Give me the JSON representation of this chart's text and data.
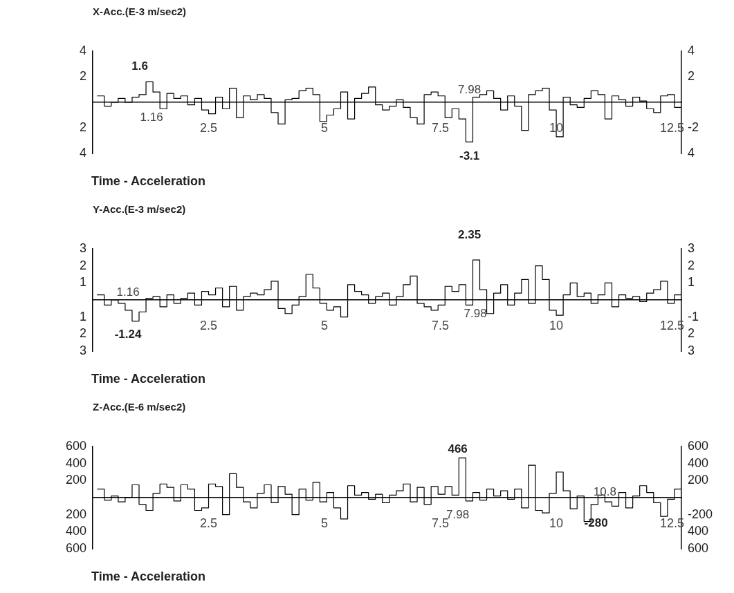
{
  "chart_data": [
    {
      "type": "step",
      "title": "X-Acc.(E-3 m/sec2)",
      "xlabel": "Time - Acceleration",
      "color": "#000000",
      "marker": "none",
      "line_style": "solid",
      "grid": false,
      "legend": false,
      "x": [
        0.1,
        0.25,
        0.4,
        0.55,
        0.7,
        0.85,
        1.0,
        1.15,
        1.3,
        1.45,
        1.6,
        1.75,
        1.9,
        2.05,
        2.2,
        2.35,
        2.5,
        2.65,
        2.8,
        2.95,
        3.1,
        3.25,
        3.4,
        3.55,
        3.7,
        3.85,
        4.0,
        4.15,
        4.3,
        4.45,
        4.6,
        4.75,
        4.9,
        5.05,
        5.2,
        5.35,
        5.5,
        5.65,
        5.8,
        5.95,
        6.1,
        6.25,
        6.4,
        6.55,
        6.7,
        6.85,
        7.0,
        7.15,
        7.3,
        7.45,
        7.6,
        7.75,
        7.9,
        8.05,
        8.2,
        8.35,
        8.5,
        8.65,
        8.8,
        8.95,
        9.1,
        9.25,
        9.4,
        9.55,
        9.7,
        9.85,
        10.0,
        10.15,
        10.3,
        10.45,
        10.6,
        10.75,
        10.9,
        11.05,
        11.2,
        11.35,
        11.5,
        11.65,
        11.8,
        11.95,
        12.1,
        12.25,
        12.4,
        12.55,
        12.7
      ],
      "values": [
        0.5,
        -0.3,
        0,
        0.3,
        0,
        0.4,
        0.6,
        1.6,
        0.8,
        -0.5,
        0.7,
        0.3,
        0.5,
        -0.2,
        0.3,
        -0.6,
        -0.9,
        0.4,
        -0.5,
        1.1,
        -1.2,
        0.5,
        0.2,
        0.6,
        0.3,
        -0.8,
        -1.7,
        0.2,
        0.3,
        0.9,
        1.1,
        0.6,
        -1.5,
        -1,
        -0.5,
        0.8,
        -1.3,
        0.3,
        0.7,
        1.2,
        -0.2,
        -0.6,
        -0.3,
        0.2,
        -0.4,
        -1.2,
        -1.7,
        0.6,
        0.8,
        0.5,
        -1.2,
        -0.5,
        -1.3,
        -3.1,
        0.4,
        0.6,
        0.9,
        0.3,
        -0.6,
        0.5,
        -0.3,
        -2.2,
        0.6,
        0.9,
        1.1,
        -0.6,
        -2.7,
        0.4,
        -0.2,
        -0.4,
        0.3,
        0.9,
        0.6,
        -1.3,
        0.5,
        0.2,
        -0.3,
        0.4,
        0.1,
        -0.5,
        -0.8,
        0.5,
        0.6,
        -0.4,
        0.3
      ],
      "xlim": [
        0,
        12.7
      ],
      "xticks": [
        2.5,
        5,
        7.5,
        10,
        12.5
      ],
      "ylim": [
        -4,
        4
      ],
      "yticks": [
        {
          "value": 4,
          "label": "4"
        },
        {
          "value": 2,
          "label": "2"
        },
        {
          "value": 0,
          "label": null
        },
        {
          "value": -2,
          "label": "2"
        },
        {
          "value": -4,
          "label": "4"
        }
      ],
      "y2lim": [
        -4,
        4
      ],
      "y2ticks": [
        {
          "value": 4,
          "label": "4"
        },
        {
          "value": 2,
          "label": "2"
        },
        {
          "value": 0,
          "label": null
        },
        {
          "value": -2,
          "label": "-2"
        },
        {
          "value": -4,
          "label": "4"
        }
      ],
      "annotations": [
        "1.6",
        "1.16",
        "7.98",
        "-3.1"
      ]
    },
    {
      "type": "step",
      "title": "Y-Acc.(E-3 m/sec2)",
      "xlabel": "Time - Acceleration",
      "color": "#000000",
      "marker": "none",
      "line_style": "solid",
      "grid": false,
      "legend": false,
      "x": [
        0.1,
        0.25,
        0.4,
        0.55,
        0.7,
        0.85,
        1.0,
        1.15,
        1.3,
        1.45,
        1.6,
        1.75,
        1.9,
        2.05,
        2.2,
        2.35,
        2.5,
        2.65,
        2.8,
        2.95,
        3.1,
        3.25,
        3.4,
        3.55,
        3.7,
        3.85,
        4.0,
        4.15,
        4.3,
        4.45,
        4.6,
        4.75,
        4.9,
        5.05,
        5.2,
        5.35,
        5.5,
        5.65,
        5.8,
        5.95,
        6.1,
        6.25,
        6.4,
        6.55,
        6.7,
        6.85,
        7.0,
        7.15,
        7.3,
        7.45,
        7.6,
        7.75,
        7.9,
        8.05,
        8.2,
        8.35,
        8.5,
        8.65,
        8.8,
        8.95,
        9.1,
        9.25,
        9.4,
        9.55,
        9.7,
        9.85,
        10.0,
        10.15,
        10.3,
        10.45,
        10.6,
        10.75,
        10.9,
        11.05,
        11.2,
        11.35,
        11.5,
        11.65,
        11.8,
        11.95,
        12.1,
        12.25,
        12.4,
        12.55,
        12.7
      ],
      "values": [
        0.3,
        -0.3,
        0,
        -0.2,
        -0.6,
        -1.24,
        -0.7,
        0.1,
        0.2,
        -0.4,
        0.3,
        -0.2,
        0.1,
        0.4,
        -0.3,
        0.5,
        0.3,
        0.7,
        -0.4,
        0.8,
        -0.6,
        0.2,
        0.4,
        0.3,
        0.6,
        1.1,
        -0.5,
        -0.8,
        -0.3,
        0.2,
        1.5,
        0.7,
        -0.2,
        -0.6,
        -0.4,
        -1.0,
        0.9,
        0.5,
        0.3,
        -0.2,
        0.2,
        0.4,
        -0.3,
        0.2,
        0.9,
        1.4,
        -0.2,
        -0.4,
        -0.6,
        -0.3,
        0.8,
        0.5,
        0.9,
        -0.3,
        2.35,
        0.6,
        -0.8,
        0.4,
        0.9,
        -0.3,
        0.4,
        1.2,
        -0.2,
        2.0,
        1.2,
        -0.6,
        -0.9,
        0.3,
        1.0,
        0.2,
        0.4,
        -0.2,
        0.3,
        1.0,
        -0.4,
        0.3,
        0.1,
        0.2,
        -0.1,
        0.4,
        0.6,
        1.1,
        -0.2,
        0.3,
        -0.4
      ],
      "xlim": [
        0,
        12.7
      ],
      "xticks": [
        2.5,
        5,
        7.5,
        10,
        12.5
      ],
      "ylim": [
        -3,
        3
      ],
      "yticks": [
        {
          "value": 3,
          "label": "3"
        },
        {
          "value": 2,
          "label": "2"
        },
        {
          "value": 1,
          "label": "1"
        },
        {
          "value": 0,
          "label": null
        },
        {
          "value": -1,
          "label": "1"
        },
        {
          "value": -2,
          "label": "2"
        },
        {
          "value": -3,
          "label": "3"
        }
      ],
      "y2lim": [
        -3,
        3
      ],
      "y2ticks": [
        {
          "value": 3,
          "label": "3"
        },
        {
          "value": 2,
          "label": "2"
        },
        {
          "value": 1,
          "label": "1"
        },
        {
          "value": 0,
          "label": null
        },
        {
          "value": -1,
          "label": "-1"
        },
        {
          "value": -2,
          "label": "2"
        },
        {
          "value": -3,
          "label": "3"
        }
      ],
      "annotations": [
        "2.35",
        "1.16",
        "7.98",
        "-1.24"
      ]
    },
    {
      "type": "step",
      "title": "Z-Acc.(E-6 m/sec2)",
      "xlabel": "Time - Acceleration",
      "color": "#000000",
      "marker": "none",
      "line_style": "solid",
      "grid": false,
      "legend": false,
      "x": [
        0.1,
        0.25,
        0.4,
        0.55,
        0.7,
        0.85,
        1.0,
        1.15,
        1.3,
        1.45,
        1.6,
        1.75,
        1.9,
        2.05,
        2.2,
        2.35,
        2.5,
        2.65,
        2.8,
        2.95,
        3.1,
        3.25,
        3.4,
        3.55,
        3.7,
        3.85,
        4.0,
        4.15,
        4.3,
        4.45,
        4.6,
        4.75,
        4.9,
        5.05,
        5.2,
        5.35,
        5.5,
        5.65,
        5.8,
        5.95,
        6.1,
        6.25,
        6.4,
        6.55,
        6.7,
        6.85,
        7.0,
        7.15,
        7.3,
        7.45,
        7.6,
        7.75,
        7.9,
        8.05,
        8.2,
        8.35,
        8.5,
        8.65,
        8.8,
        8.95,
        9.1,
        9.25,
        9.4,
        9.55,
        9.7,
        9.85,
        10.0,
        10.15,
        10.3,
        10.45,
        10.6,
        10.75,
        10.9,
        11.05,
        11.2,
        11.35,
        11.5,
        11.65,
        11.8,
        11.95,
        12.1,
        12.25,
        12.4,
        12.55,
        12.7
      ],
      "values": [
        100,
        -30,
        20,
        -50,
        0,
        150,
        -80,
        -150,
        50,
        160,
        120,
        -40,
        150,
        100,
        -150,
        -120,
        160,
        130,
        -200,
        280,
        120,
        -50,
        -120,
        50,
        150,
        -60,
        130,
        40,
        -200,
        100,
        -30,
        180,
        -50,
        60,
        -120,
        -250,
        140,
        30,
        60,
        -20,
        40,
        -60,
        30,
        80,
        160,
        -50,
        120,
        -80,
        130,
        40,
        130,
        30,
        466,
        -40,
        60,
        -30,
        100,
        20,
        80,
        -20,
        100,
        -120,
        380,
        -150,
        -180,
        50,
        300,
        80,
        -130,
        20,
        -280,
        -80,
        30,
        -50,
        -100,
        60,
        -120,
        20,
        140,
        60,
        -60,
        -220,
        -20,
        100,
        40
      ],
      "xlim": [
        0,
        12.7
      ],
      "xticks": [
        2.5,
        5,
        7.5,
        10,
        12.5
      ],
      "ylim": [
        -600,
        600
      ],
      "yticks": [
        {
          "value": 600,
          "label": "600"
        },
        {
          "value": 400,
          "label": "400"
        },
        {
          "value": 200,
          "label": "200"
        },
        {
          "value": 0,
          "label": null
        },
        {
          "value": -200,
          "label": "200"
        },
        {
          "value": -400,
          "label": "400"
        },
        {
          "value": -600,
          "label": "600"
        }
      ],
      "y2lim": [
        -600,
        600
      ],
      "y2ticks": [
        {
          "value": 600,
          "label": "600"
        },
        {
          "value": 400,
          "label": "400"
        },
        {
          "value": 200,
          "label": "200"
        },
        {
          "value": 0,
          "label": null
        },
        {
          "value": -200,
          "label": "-200"
        },
        {
          "value": -400,
          "label": "400"
        },
        {
          "value": -600,
          "label": "600"
        }
      ],
      "annotations": [
        "466",
        "7.98",
        "10.8",
        "-280"
      ]
    }
  ]
}
